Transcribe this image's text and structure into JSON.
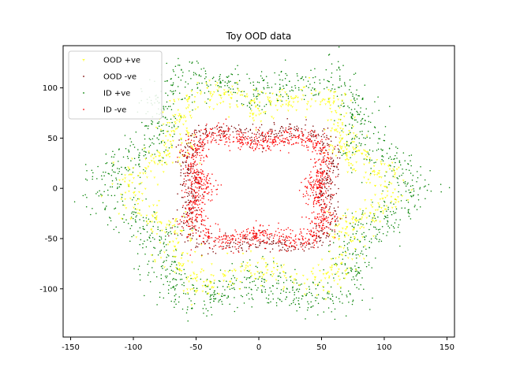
{
  "chart_data": {
    "type": "scatter",
    "title": "Toy OOD data",
    "xlabel": "",
    "ylabel": "",
    "xlim": [
      -156,
      156
    ],
    "ylim": [
      -148,
      142
    ],
    "xticks": [
      -150,
      -100,
      -50,
      0,
      50,
      100,
      150
    ],
    "yticks": [
      -100,
      -50,
      0,
      50,
      100
    ],
    "grid": false,
    "legend_position": "top-left",
    "series": [
      {
        "name": "OOD +ve",
        "color": "#ffff00",
        "marker": "tri_down",
        "shape": "six-petal flower band",
        "r_mean": 92,
        "r_amp": 12,
        "r_spread": 9,
        "petals": 6,
        "phase_deg": 0,
        "n_points": 900
      },
      {
        "name": "OOD -ve",
        "color": "#7a0000",
        "marker": "dot",
        "shape": "four-lobed ring",
        "r_mean": 62,
        "r_amp": 9,
        "r_spread": 5,
        "petals": 4,
        "phase_deg": 45,
        "n_points": 700
      },
      {
        "name": "ID +ve",
        "color": "#008000",
        "marker": "dot",
        "shape": "six-petal flower band (outer)",
        "r_mean": 108,
        "r_amp": 14,
        "r_spread": 11,
        "petals": 6,
        "phase_deg": 0,
        "n_points": 1500
      },
      {
        "name": "ID -ve",
        "color": "#ff0000",
        "marker": "dot",
        "shape": "four-lobed ring (inner)",
        "r_mean": 55,
        "r_amp": 9,
        "r_spread": 6,
        "petals": 4,
        "phase_deg": 45,
        "n_points": 1300
      }
    ]
  }
}
